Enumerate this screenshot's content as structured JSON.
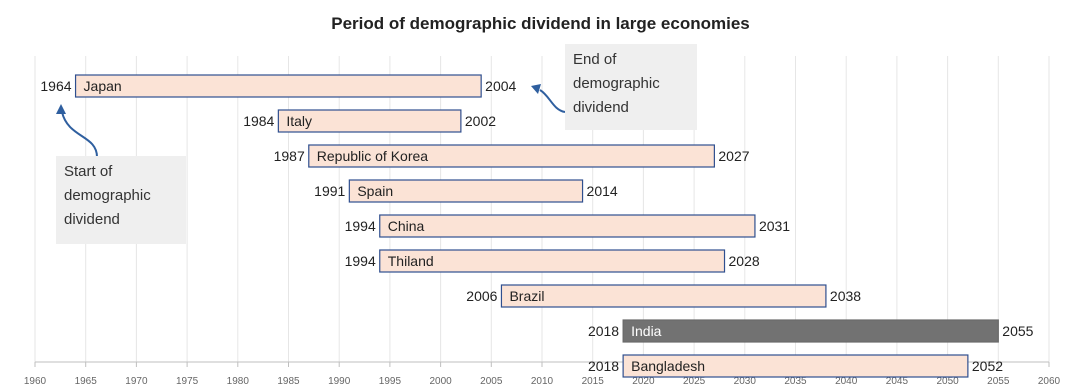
{
  "chart_data": {
    "type": "bar",
    "title": "Period of demographic dividend in large economies",
    "xlim": [
      1960,
      2060
    ],
    "x_ticks": [
      "1960",
      "1965",
      "1970",
      "1975",
      "1980",
      "1985",
      "1990",
      "1995",
      "2000",
      "2005",
      "2010",
      "2015",
      "2020",
      "2025",
      "2030",
      "2035",
      "2040",
      "2045",
      "2050",
      "2055",
      "2060"
    ],
    "grid": true,
    "bars": [
      {
        "name": "Japan",
        "start": 1964,
        "end": 2004,
        "start_label": "1964",
        "end_label": "2004",
        "highlight": false
      },
      {
        "name": "Italy",
        "start": 1984,
        "end": 2002,
        "start_label": "1984",
        "end_label": "2002",
        "highlight": false
      },
      {
        "name": "Republic of Korea",
        "start": 1987,
        "end": 2027,
        "start_label": "1987",
        "end_label": "2027",
        "highlight": false
      },
      {
        "name": "Spain",
        "start": 1991,
        "end": 2014,
        "start_label": "1991",
        "end_label": "2014",
        "highlight": false
      },
      {
        "name": "China",
        "start": 1994,
        "end": 2031,
        "start_label": "1994",
        "end_label": "2031",
        "highlight": false
      },
      {
        "name": "Thiland",
        "start": 1994,
        "end": 2028,
        "start_label": "1994",
        "end_label": "2028",
        "highlight": false
      },
      {
        "name": "Brazil",
        "start": 2006,
        "end": 2038,
        "start_label": "2006",
        "end_label": "2038",
        "highlight": false
      },
      {
        "name": "India",
        "start": 2018,
        "end": 2055,
        "start_label": "2018",
        "end_label": "2055",
        "highlight": true
      },
      {
        "name": "Bangladesh",
        "start": 2018,
        "end": 2052,
        "start_label": "2018",
        "end_label": "2052",
        "highlight": false
      }
    ],
    "annotations": {
      "start": [
        "Start of",
        "demographic",
        "dividend"
      ],
      "end": [
        "End of",
        "demographic",
        "dividend"
      ]
    },
    "colors": {
      "bar_fill": "#fbe3d6",
      "bar_border": "#2f4f8f",
      "highlight_fill": "#727272",
      "highlight_text": "#ffffff",
      "grid": "#e6e6e6",
      "arrow": "#2f5f9f"
    }
  }
}
